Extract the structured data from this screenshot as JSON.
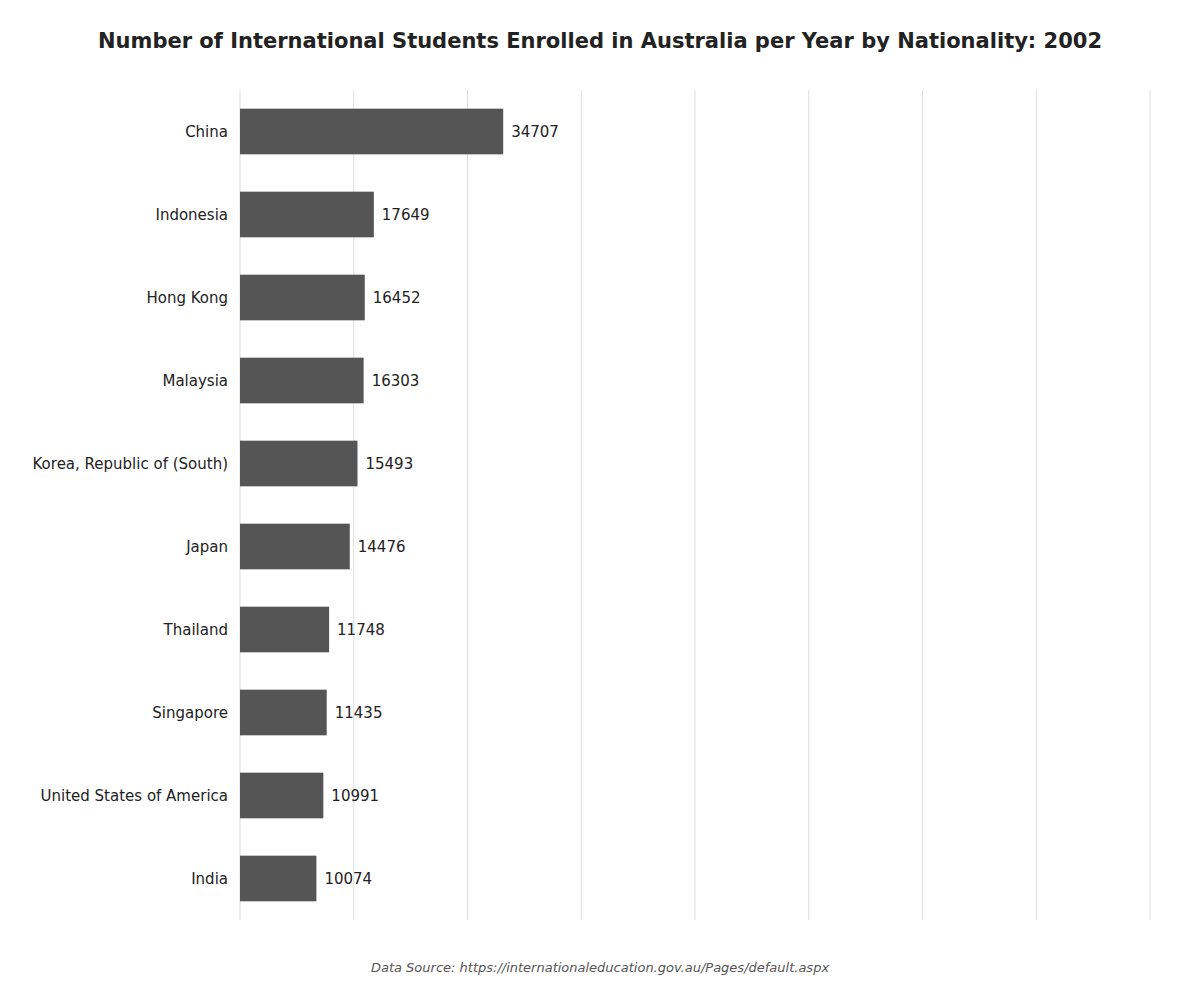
{
  "chart_data": {
    "type": "bar",
    "orientation": "horizontal",
    "title": "Number of International Students Enrolled in Australia per Year by Nationality: 2002",
    "categories": [
      "China",
      "Indonesia",
      "Hong Kong",
      "Malaysia",
      "Korea, Republic of (South)",
      "Japan",
      "Thailand",
      "Singapore",
      "United States of America",
      "India"
    ],
    "values": [
      34707,
      17649,
      16452,
      16303,
      15493,
      14476,
      11748,
      11435,
      10991,
      10074
    ],
    "color": "#555555",
    "xlim": [
      0,
      120000
    ],
    "xticks": [
      0,
      15000,
      30000,
      45000,
      60000,
      75000,
      90000,
      105000,
      120000
    ],
    "grid": true,
    "data_labels": true,
    "tick_labels": "y",
    "annotations": [
      "Data Source: https://internationaleducation.gov.au/Pages/default.aspx"
    ]
  }
}
